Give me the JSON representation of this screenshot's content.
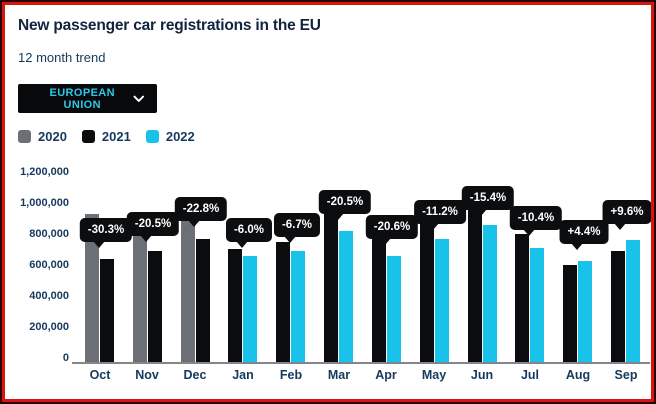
{
  "header": {
    "title": "New passenger car registrations in the EU",
    "subtitle": "12 month trend"
  },
  "dropdown": {
    "selected": "EUROPEAN UNION",
    "icon": "chevron-down-icon"
  },
  "colors": {
    "accent_cyan": "#2cc8ec",
    "text_navy": "#16395d",
    "bubble_bg": "#0c0d0f",
    "bubble_text": "#ffffff",
    "axis_line": "#83878c",
    "frame_red": "#d81414",
    "dropdown_bg": "#08090b"
  },
  "chart_data": {
    "type": "bar",
    "title": "New passenger car registrations in the EU",
    "categories": [
      "Oct",
      "Nov",
      "Dec",
      "Jan",
      "Feb",
      "Mar",
      "Apr",
      "May",
      "Jun",
      "Jul",
      "Aug",
      "Sep"
    ],
    "series": [
      {
        "name": "2020",
        "color": "#6a7076",
        "values": [
          954000,
          898000,
          1031000,
          null,
          null,
          null,
          null,
          null,
          null,
          null,
          null,
          null
        ]
      },
      {
        "name": "2021",
        "color": "#0a0c0e",
        "values": [
          665000,
          713000,
          796000,
          726000,
          771000,
          1062000,
          862000,
          892000,
          1047000,
          824000,
          623000,
          719000
        ]
      },
      {
        "name": "2022",
        "color": "#19c2e8",
        "values": [
          null,
          null,
          null,
          683000,
          719000,
          844000,
          685000,
          792000,
          886000,
          738000,
          650000,
          788000
        ]
      }
    ],
    "point_labels": [
      "-30.3%",
      "-20.5%",
      "-22.8%",
      "-6.0%",
      "-6.7%",
      "-20.5%",
      "-20.6%",
      "-11.2%",
      "-15.4%",
      "-10.4%",
      "+4.4%",
      "+9.6%"
    ],
    "xlabel": "",
    "ylabel": "",
    "ylim": [
      0,
      1200000
    ],
    "yticks": [
      "0",
      "200,000",
      "400,000",
      "600,000",
      "800,000",
      "1,000,000",
      "1,200,000"
    ],
    "grid": false,
    "legend_position": "top-left"
  }
}
